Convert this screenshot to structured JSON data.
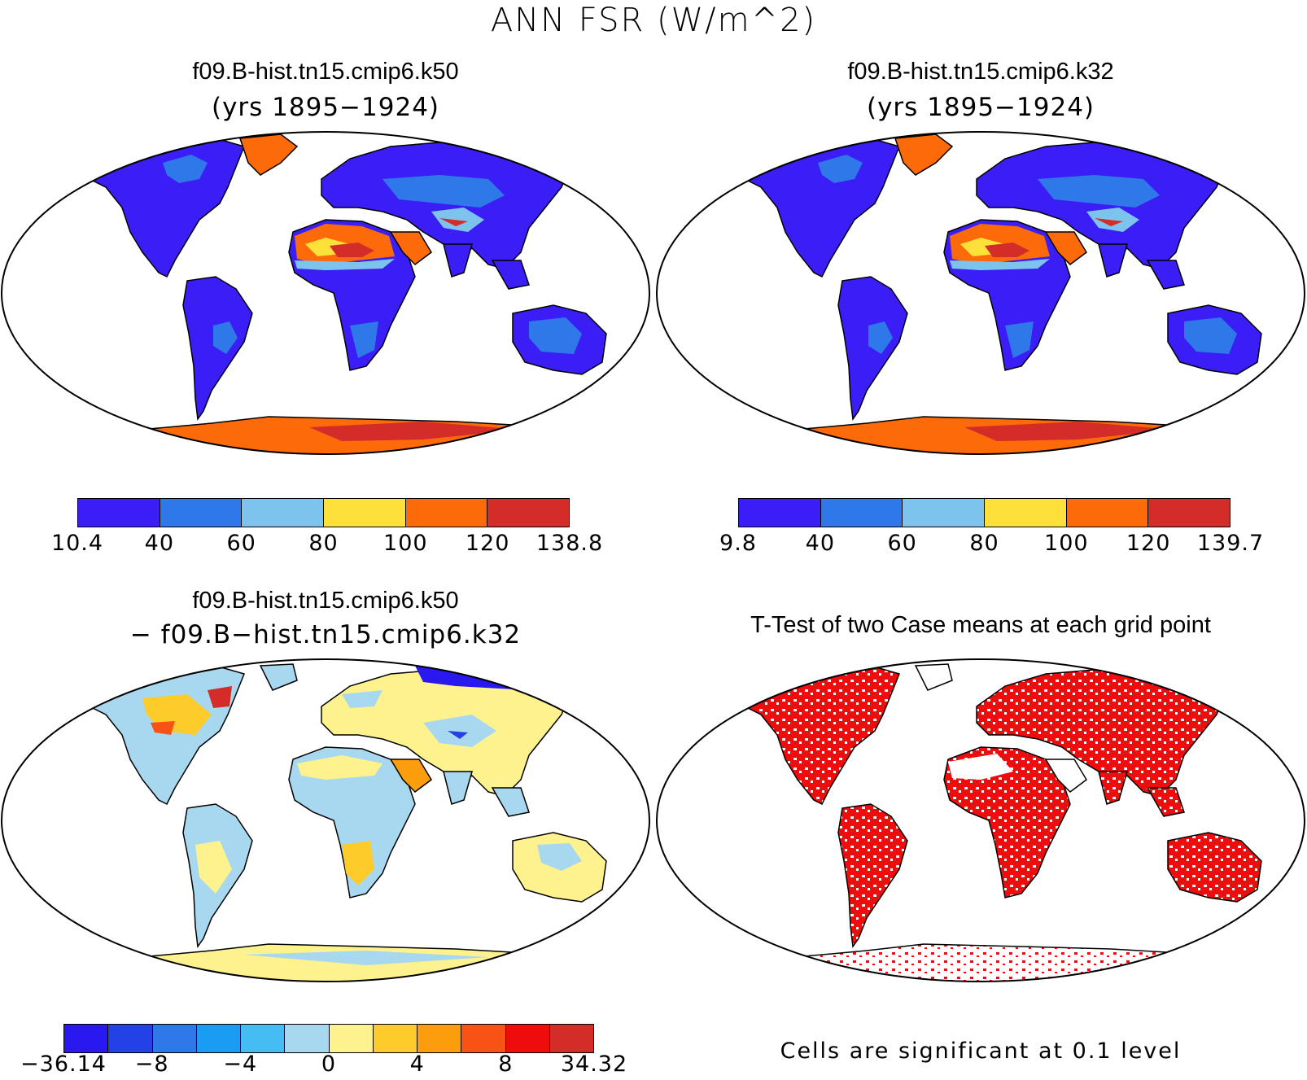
{
  "title": "ANN FSR (W/m^2)",
  "panels": [
    {
      "title": "f09.B-hist.tn15.cmip6.k50",
      "subtitle": "(yrs 1895−1924)",
      "colorbar": {
        "colors": [
          "#3b1ef5",
          "#2f78ea",
          "#7cc4ee",
          "#fde03a",
          "#fd6a0a",
          "#d42c28"
        ],
        "ticks": [
          "10.4",
          "40",
          "60",
          "80",
          "100",
          "120",
          "138.8"
        ]
      }
    },
    {
      "title": "f09.B-hist.tn15.cmip6.k32",
      "subtitle": "(yrs 1895−1924)",
      "colorbar": {
        "colors": [
          "#3b1ef5",
          "#2f78ea",
          "#7cc4ee",
          "#fde03a",
          "#fd6a0a",
          "#d42c28"
        ],
        "ticks": [
          "9.8",
          "40",
          "60",
          "80",
          "100",
          "120",
          "139.7"
        ]
      }
    },
    {
      "title": "f09.B-hist.tn15.cmip6.k50",
      "subtitle": "− f09.B−hist.tn15.cmip6.k32",
      "colorbar": {
        "colors": [
          "#2a18f0",
          "#2341e6",
          "#2f78ea",
          "#1b9cf3",
          "#45bcf2",
          "#a8d8ef",
          "#fef28e",
          "#fdcb2a",
          "#fb9d0c",
          "#f85314",
          "#ee0c0c",
          "#d42c28"
        ],
        "ticks": [
          "−36.14",
          "−8",
          "−4",
          "0",
          "4",
          "8",
          "34.32"
        ]
      }
    },
    {
      "title": "T-Test of two Case means at each grid point",
      "note": "Cells are significant at 0.1 level"
    }
  ]
}
